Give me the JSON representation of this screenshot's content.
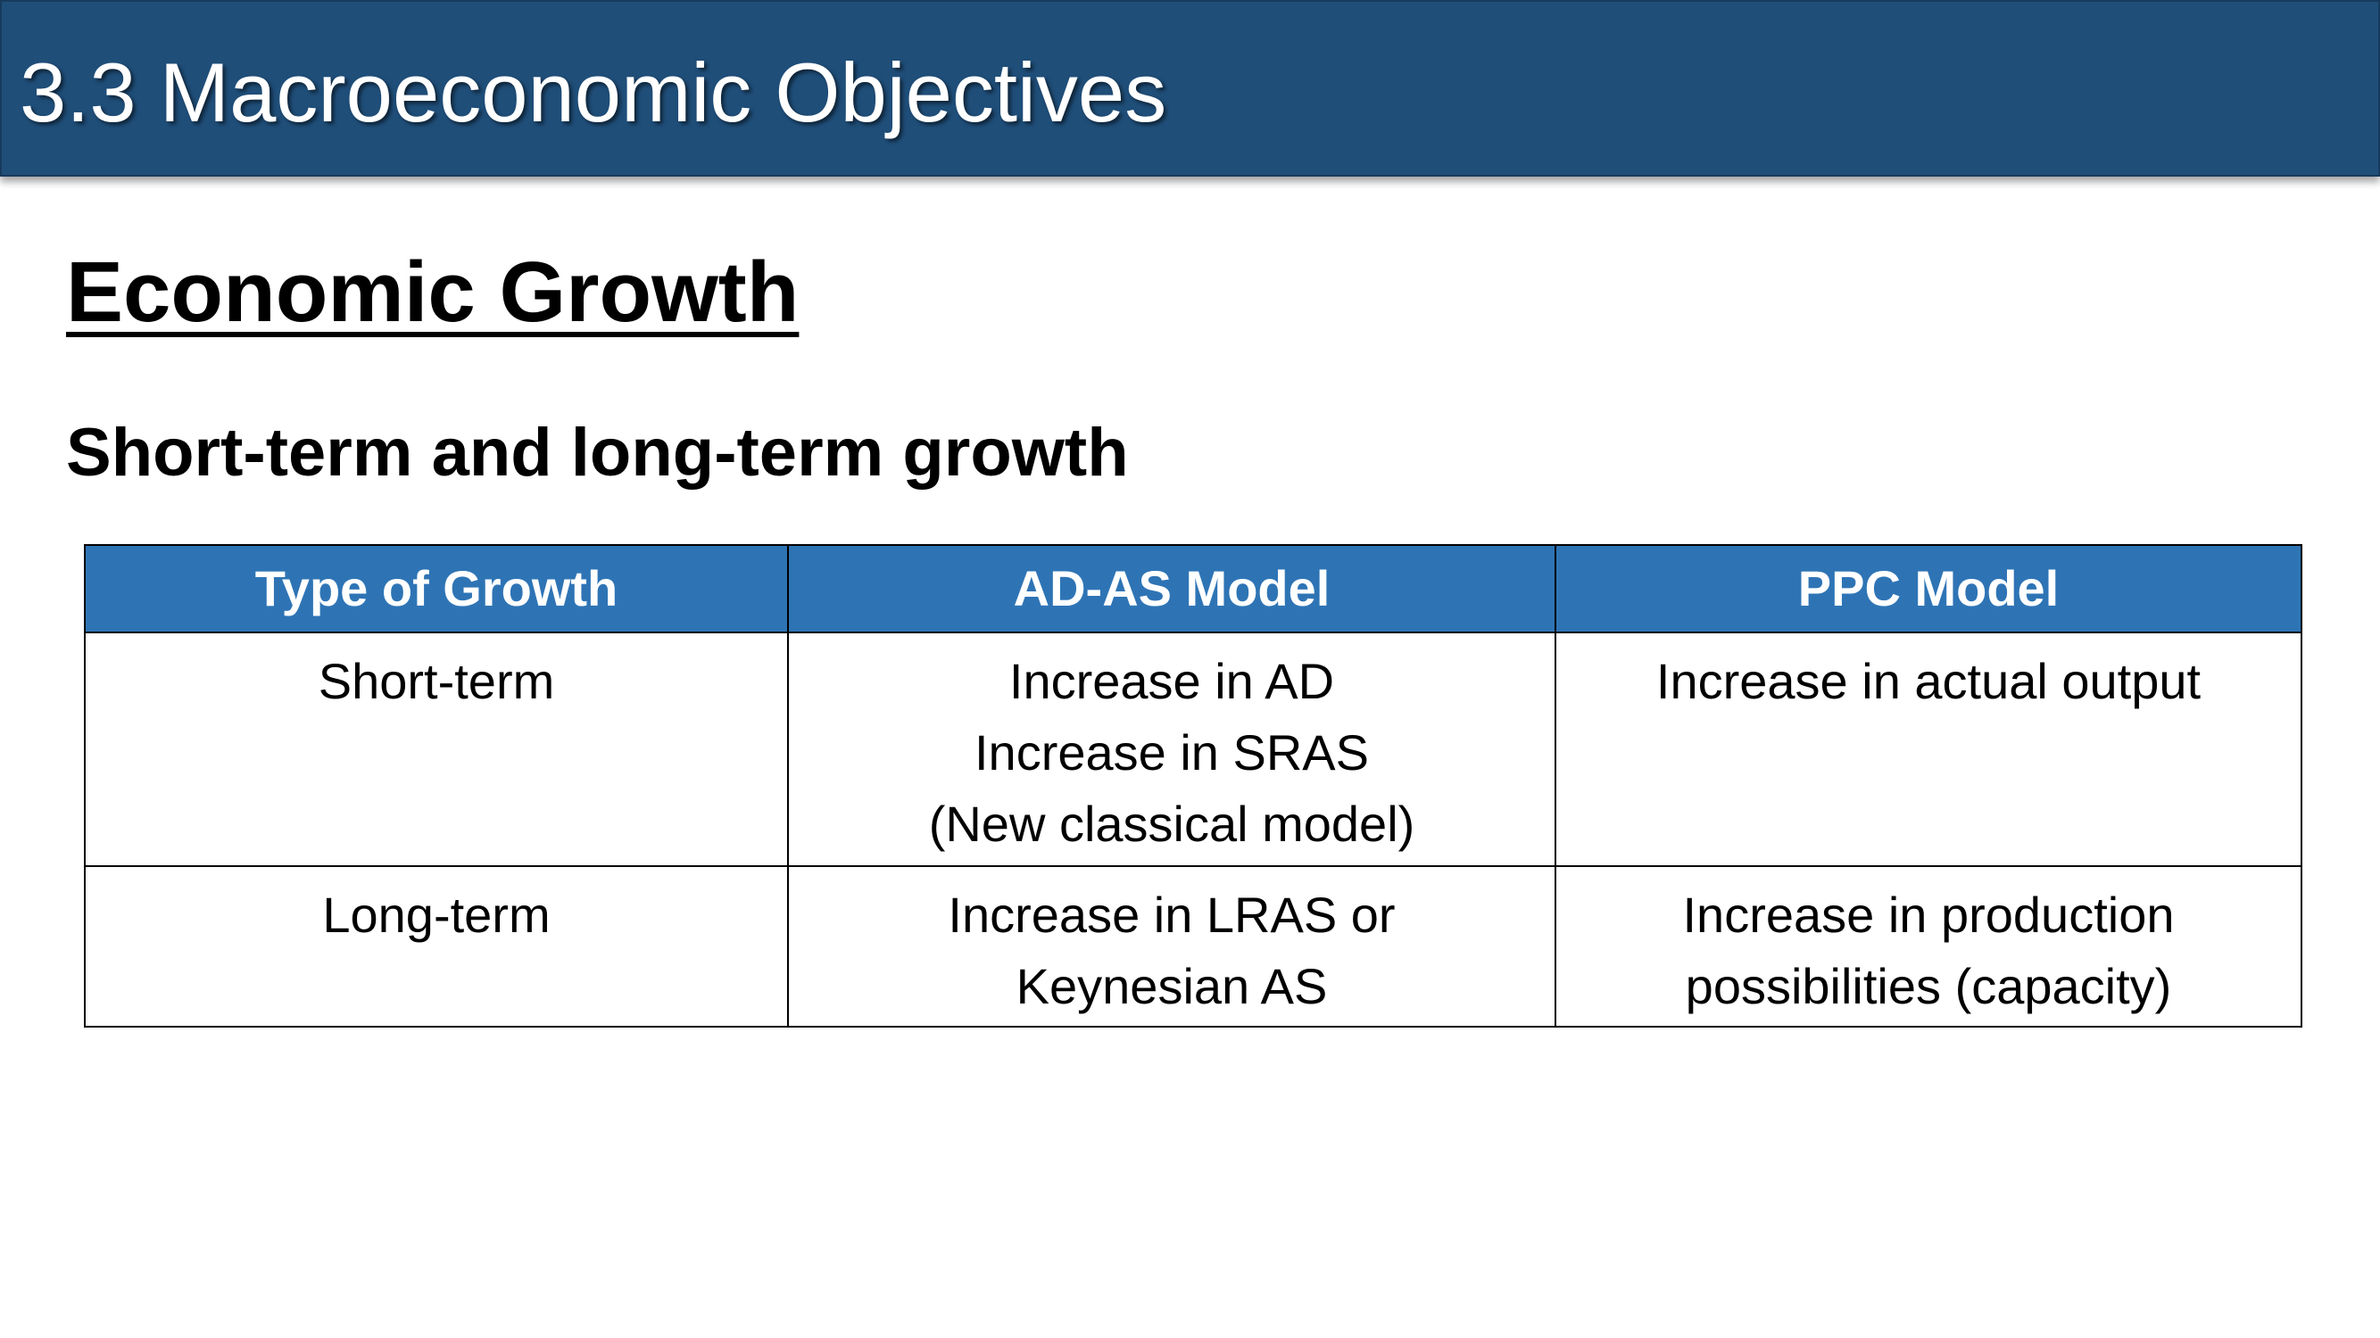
{
  "header": {
    "title": "3.3 Macroeconomic Objectives"
  },
  "section": {
    "title": "Economic Growth",
    "subtitle": "Short-term and long-term growth"
  },
  "table": {
    "columns": [
      "Type of Growth",
      "AD-AS Model",
      "PPC Model"
    ],
    "rows": [
      {
        "type": "Short-term",
        "adas": [
          "Increase in AD",
          "Increase in SRAS",
          "(New classical model)"
        ],
        "ppc": [
          "Increase in actual output"
        ]
      },
      {
        "type": "Long-term",
        "adas": [
          "Increase in LRAS or",
          "Keynesian AS"
        ],
        "ppc": [
          "Increase in production",
          "possibilities (capacity)"
        ]
      }
    ]
  },
  "colors": {
    "header_bar": "#1f4e79",
    "table_header": "#2e74b5"
  }
}
